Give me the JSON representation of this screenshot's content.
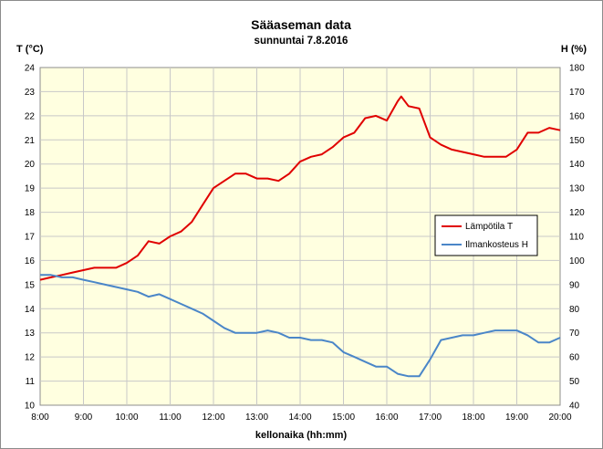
{
  "chart_data": {
    "type": "line",
    "title": "Sääaseman data",
    "subtitle": "sunnuntai 7.8.2016",
    "xlabel": "kellonaika (hh:mm)",
    "ylabel_left": "T (°C)",
    "ylabel_right": "H (%)",
    "x_ticks": [
      "8:00",
      "9:00",
      "10:00",
      "11:00",
      "12:00",
      "13:00",
      "14:00",
      "15:00",
      "16:00",
      "17:00",
      "18:00",
      "19:00",
      "20:00"
    ],
    "xlim_hours": [
      8,
      20
    ],
    "ylim_left": [
      10,
      24
    ],
    "ylim_right": [
      40,
      180
    ],
    "y_ticks_left": [
      "10",
      "11",
      "12",
      "13",
      "14",
      "15",
      "16",
      "17",
      "18",
      "19",
      "20",
      "21",
      "22",
      "23",
      "24"
    ],
    "y_ticks_right": [
      "40",
      "50",
      "60",
      "70",
      "80",
      "90",
      "100",
      "110",
      "120",
      "130",
      "140",
      "150",
      "160",
      "170",
      "180"
    ],
    "grid": true,
    "legend_position": "right",
    "colors": {
      "plot_background": "#ffffe0",
      "grid": "#c8c8c8"
    },
    "series": [
      {
        "name": "Lämpötila  T",
        "axis": "left",
        "color": "#e00000",
        "x": [
          "8:00",
          "8:15",
          "8:30",
          "8:45",
          "9:00",
          "9:15",
          "9:30",
          "9:45",
          "10:00",
          "10:15",
          "10:30",
          "10:45",
          "11:00",
          "11:15",
          "11:30",
          "11:45",
          "12:00",
          "12:15",
          "12:30",
          "12:45",
          "13:00",
          "13:15",
          "13:30",
          "13:45",
          "14:00",
          "14:15",
          "14:30",
          "14:45",
          "15:00",
          "15:15",
          "15:30",
          "15:45",
          "16:00",
          "16:15",
          "16:20",
          "16:30",
          "16:45",
          "17:00",
          "17:15",
          "17:30",
          "17:45",
          "18:00",
          "18:15",
          "18:30",
          "18:45",
          "19:00",
          "19:15",
          "19:30",
          "19:45",
          "20:00"
        ],
        "y": [
          15.2,
          15.3,
          15.4,
          15.5,
          15.6,
          15.7,
          15.7,
          15.7,
          15.9,
          16.2,
          16.8,
          16.7,
          17.0,
          17.2,
          17.6,
          18.3,
          19.0,
          19.3,
          19.6,
          19.6,
          19.4,
          19.4,
          19.3,
          19.6,
          20.1,
          20.3,
          20.4,
          20.7,
          21.1,
          21.3,
          21.9,
          22.0,
          21.8,
          22.6,
          22.8,
          22.4,
          22.3,
          21.1,
          20.8,
          20.6,
          20.5,
          20.4,
          20.3,
          20.3,
          20.3,
          20.6,
          21.3,
          21.3,
          21.5,
          21.4
        ]
      },
      {
        "name": "Ilmankosteus  H",
        "axis": "right",
        "color": "#4a86c8",
        "x": [
          "8:00",
          "8:15",
          "8:30",
          "8:45",
          "9:00",
          "9:15",
          "9:30",
          "9:45",
          "10:00",
          "10:15",
          "10:30",
          "10:45",
          "11:00",
          "11:15",
          "11:30",
          "11:45",
          "12:00",
          "12:15",
          "12:30",
          "12:45",
          "13:00",
          "13:15",
          "13:30",
          "13:45",
          "14:00",
          "14:15",
          "14:30",
          "14:45",
          "15:00",
          "15:15",
          "15:30",
          "15:45",
          "16:00",
          "16:15",
          "16:30",
          "16:45",
          "17:00",
          "17:15",
          "17:30",
          "17:45",
          "18:00",
          "18:15",
          "18:30",
          "18:45",
          "19:00",
          "19:15",
          "19:30",
          "19:45",
          "20:00"
        ],
        "y": [
          94,
          94,
          93,
          93,
          92,
          91,
          90,
          89,
          88,
          87,
          85,
          86,
          84,
          82,
          80,
          78,
          75,
          72,
          70,
          70,
          70,
          71,
          70,
          68,
          68,
          67,
          67,
          66,
          62,
          60,
          58,
          56,
          56,
          53,
          52,
          52,
          59,
          67,
          68,
          69,
          69,
          70,
          71,
          71,
          71,
          69,
          66,
          66,
          68
        ]
      }
    ]
  }
}
